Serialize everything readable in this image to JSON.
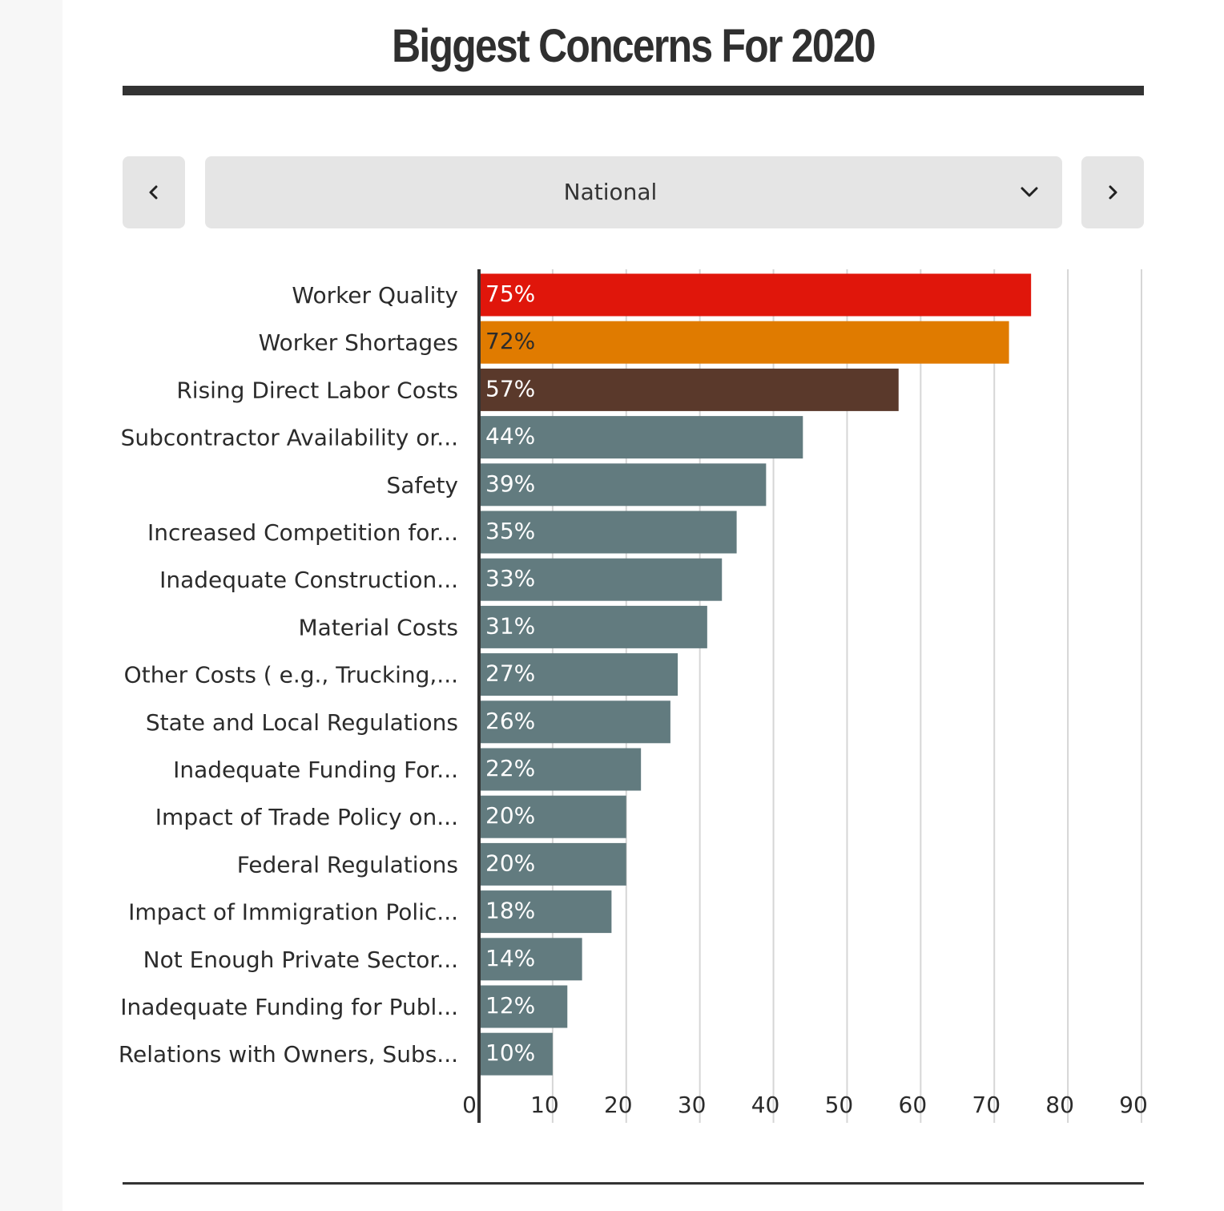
{
  "title": "Biggest Concerns For 2020",
  "selector": {
    "prev_icon": "chevron-left-icon",
    "next_icon": "chevron-right-icon",
    "dropdown_icon": "chevron-down-icon",
    "selected": "National"
  },
  "colors": {
    "highlight_1": "#e0160b",
    "highlight_2": "#e07b00",
    "highlight_3": "#5a392b",
    "default_bar": "#627b7f",
    "grid": "#d6d6d6",
    "axis": "#333333",
    "label_text": "#2b2b2b"
  },
  "chart_data": {
    "type": "bar",
    "orientation": "horizontal",
    "categories": [
      "Worker Quality",
      "Worker Shortages",
      "Rising Direct Labor Costs",
      "Subcontractor Availability or...",
      "Safety",
      "Increased Competition for...",
      "Inadequate Construction...",
      "Material Costs",
      "Other Costs ( e.g., Trucking,...",
      "State and Local Regulations",
      "Inadequate Funding For...",
      "Impact of Trade Policy on...",
      "Federal Regulations",
      "Impact of Immigration Polic...",
      "Not Enough Private Sector...",
      "Inadequate Funding for Publ...",
      "Relations with Owners, Subs..."
    ],
    "values": [
      75,
      72,
      57,
      44,
      39,
      35,
      33,
      31,
      27,
      26,
      22,
      20,
      20,
      18,
      14,
      12,
      10
    ],
    "data_labels": [
      "75%",
      "72%",
      "57%",
      "44%",
      "39%",
      "35%",
      "33%",
      "31%",
      "27%",
      "26%",
      "22%",
      "20%",
      "20%",
      "18%",
      "14%",
      "12%",
      "10%"
    ],
    "bar_colors": [
      "#e0160b",
      "#e07b00",
      "#5a392b",
      "#627b7f",
      "#627b7f",
      "#627b7f",
      "#627b7f",
      "#627b7f",
      "#627b7f",
      "#627b7f",
      "#627b7f",
      "#627b7f",
      "#627b7f",
      "#627b7f",
      "#627b7f",
      "#627b7f",
      "#627b7f"
    ],
    "label_colors": [
      "#ffffff",
      "#2b2b2b",
      "#ffffff",
      "#ffffff",
      "#ffffff",
      "#ffffff",
      "#ffffff",
      "#ffffff",
      "#ffffff",
      "#ffffff",
      "#ffffff",
      "#ffffff",
      "#ffffff",
      "#ffffff",
      "#ffffff",
      "#ffffff",
      "#ffffff"
    ],
    "xlim": [
      0,
      90
    ],
    "xticks": [
      "0",
      "10",
      "20",
      "30",
      "40",
      "50",
      "60",
      "70",
      "80",
      "90"
    ],
    "xtick_values": [
      0,
      10,
      20,
      30,
      40,
      50,
      60,
      70,
      80,
      90
    ],
    "grid": true,
    "legend": "none",
    "xlabel": "",
    "ylabel": ""
  }
}
